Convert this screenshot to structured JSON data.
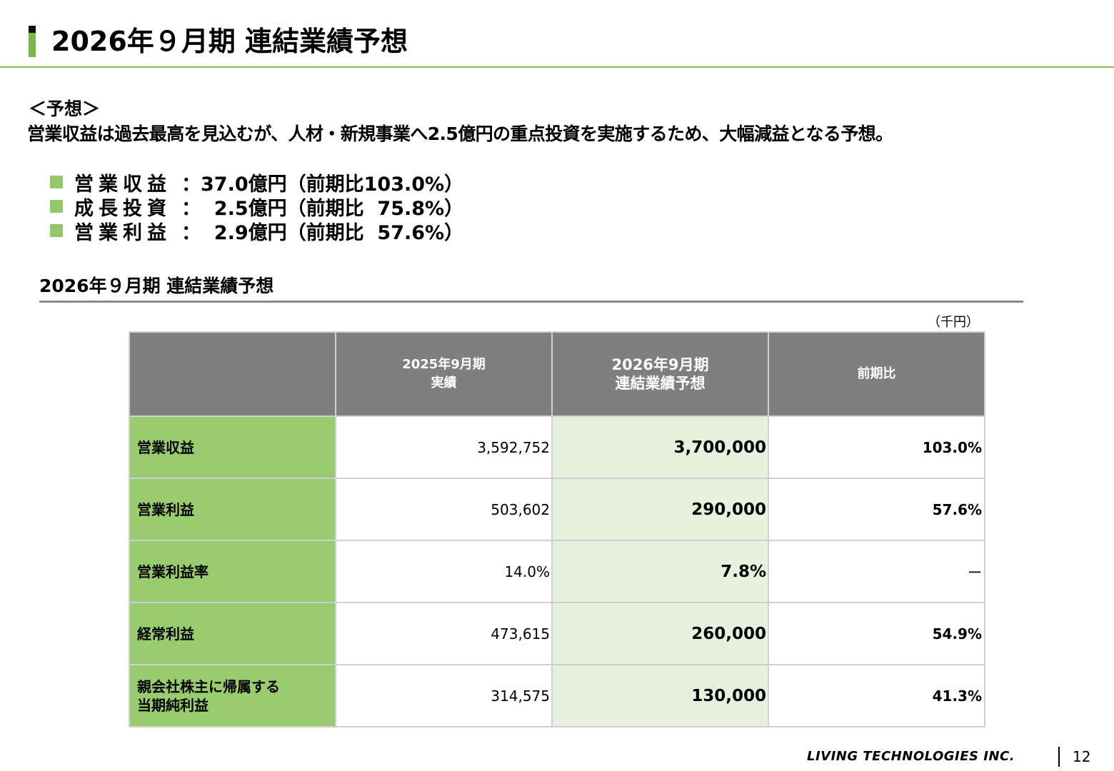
{
  "page_title": "2026年９月期 連結業績予想",
  "forecast": {
    "heading": "＜予想＞",
    "summary": "営業収益は過去最高を見込むが、人材・新規事業へ2.5億円の重点投資を実施するため、大幅減益となる予想。",
    "bullets": [
      {
        "label": "営業収益",
        "value": "：37.0億円（前期比103.0%）"
      },
      {
        "label": "成長投資",
        "value": "：  2.5億円（前期比  75.8%）"
      },
      {
        "label": "営業利益",
        "value": "：  2.9億円（前期比  57.6%）"
      }
    ]
  },
  "table_section": {
    "title": "2026年９月期 連結業績予想",
    "unit": "（千円）",
    "columns": {
      "prev_line1": "2025年9月期",
      "prev_line2": "実績",
      "curr_line1": "2026年9月期",
      "curr_line2": "連結業績予想",
      "ratio": "前期比"
    },
    "rows": [
      {
        "label": "営業収益",
        "label2": "",
        "prev": "3,592,752",
        "curr": "3,700,000",
        "ratio": "103.0%"
      },
      {
        "label": "営業利益",
        "label2": "",
        "prev": "503,602",
        "curr": "290,000",
        "ratio": "57.6%"
      },
      {
        "label": "営業利益率",
        "label2": "",
        "prev": "14.0%",
        "curr": "7.8%",
        "ratio": "ー"
      },
      {
        "label": "経常利益",
        "label2": "",
        "prev": "473,615",
        "curr": "260,000",
        "ratio": "54.9%"
      },
      {
        "label": "親会社株主に帰属する",
        "label2": "当期純利益",
        "prev": "314,575",
        "curr": "130,000",
        "ratio": "41.3%"
      }
    ]
  },
  "footer": {
    "company": "LIVING TECHNOLOGIES INC.",
    "page_number": "12"
  }
}
